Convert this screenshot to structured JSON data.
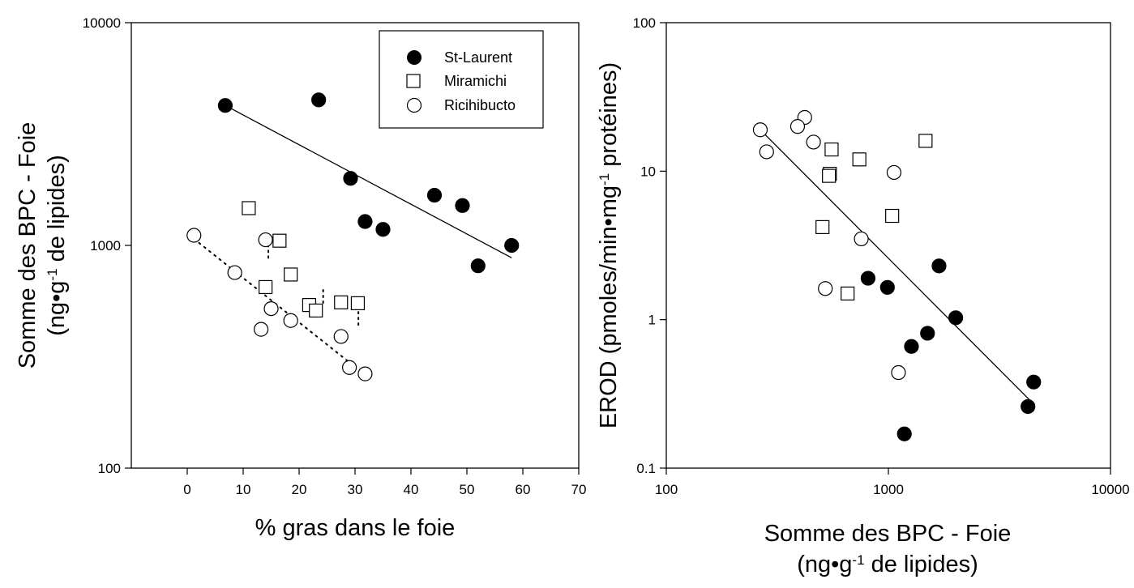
{
  "chart_data": [
    {
      "type": "scatter",
      "id": "left",
      "xlabel": "% gras dans le foie",
      "ylabel_line1": "Somme des BPC - Foie",
      "ylabel_line2": {
        "pre": "(ng•g",
        "sup": "-1",
        "post": " de lipides)"
      },
      "x_scale": "linear",
      "y_scale": "log",
      "xlim": [
        -10,
        70
      ],
      "ylim": [
        100,
        10000
      ],
      "x_ticks": [
        0,
        10,
        20,
        30,
        40,
        50,
        60,
        70
      ],
      "x_tick_labels": [
        "0",
        "10",
        "20",
        "30",
        "40",
        "50",
        "60",
        "70"
      ],
      "y_ticks": [
        100,
        1000,
        10000
      ],
      "y_tick_labels": [
        "100",
        "1000",
        "10000"
      ],
      "legend": {
        "placement": "top-right",
        "entries": [
          {
            "label": "St-Laurent",
            "marker": "filled-circle"
          },
          {
            "label": "Miramichi",
            "marker": "open-square"
          },
          {
            "label": "Ricihibucto",
            "marker": "open-circle"
          }
        ]
      },
      "series": [
        {
          "name": "St-Laurent",
          "marker": "filled-circle",
          "color": "#000000",
          "points": [
            [
              6.8,
              4250
            ],
            [
              23.5,
              4500
            ],
            [
              29.2,
              2000
            ],
            [
              31.8,
              1280
            ],
            [
              35,
              1180
            ],
            [
              44.2,
              1680
            ],
            [
              49.2,
              1510
            ],
            [
              52,
              810
            ],
            [
              58,
              1000
            ]
          ]
        },
        {
          "name": "Miramichi",
          "marker": "open-square",
          "color": "#000000",
          "points": [
            [
              11,
              1470
            ],
            [
              16.5,
              1050
            ],
            [
              18.5,
              740
            ],
            [
              14,
              650
            ],
            [
              21.8,
              540
            ],
            [
              23,
              510
            ],
            [
              27.5,
              555
            ],
            [
              30.5,
              550
            ]
          ]
        },
        {
          "name": "Ricihibucto",
          "marker": "open-circle",
          "color": "#000000",
          "points": [
            [
              1.2,
              1110
            ],
            [
              8.5,
              755
            ],
            [
              14,
              1060
            ],
            [
              15,
              520
            ],
            [
              13.2,
              420
            ],
            [
              18.5,
              460
            ],
            [
              27.5,
              390
            ],
            [
              29,
              283
            ],
            [
              31.8,
              265
            ]
          ]
        }
      ],
      "regression_lines": [
        {
          "series": "St-Laurent",
          "style": "solid",
          "from": [
            6.8,
            4250
          ],
          "to": [
            58,
            880
          ]
        },
        {
          "series": "Ricihibucto",
          "style": "dotted",
          "from": [
            1.2,
            1070
          ],
          "to": [
            30,
            285
          ]
        }
      ],
      "vertical_dot_marks": [
        [
          14.5,
          940
        ],
        [
          24.3,
          590
        ],
        [
          30.6,
          470
        ]
      ]
    },
    {
      "type": "scatter",
      "id": "right",
      "xlabel_line1": "Somme des BPC - Foie",
      "xlabel_line2": {
        "pre": "(ng•g",
        "sup": "-1",
        "post": " de lipides)"
      },
      "ylabel": {
        "pre": "EROD (pmoles/min•mg",
        "sup": "-1",
        "post": " protéines)"
      },
      "x_scale": "log",
      "y_scale": "log",
      "xlim": [
        100,
        10000
      ],
      "ylim": [
        0.1,
        100
      ],
      "x_ticks": [
        100,
        1000,
        10000
      ],
      "x_tick_labels": [
        "100",
        "1000",
        "10000"
      ],
      "y_ticks": [
        0.1,
        1,
        10,
        100
      ],
      "y_tick_labels": [
        "0.1",
        "1",
        "10",
        "100"
      ],
      "series": [
        {
          "name": "St-Laurent",
          "marker": "filled-circle",
          "color": "#000000",
          "points": [
            [
              810,
              1.9
            ],
            [
              990,
              1.65
            ],
            [
              1690,
              2.3
            ],
            [
              2010,
              1.03
            ],
            [
              1500,
              0.81
            ],
            [
              1270,
              0.66
            ],
            [
              4510,
              0.38
            ],
            [
              4250,
              0.26
            ],
            [
              1180,
              0.17
            ]
          ]
        },
        {
          "name": "Miramichi",
          "marker": "open-square",
          "color": "#000000",
          "points": [
            [
              1470,
              16
            ],
            [
              555,
              14
            ],
            [
              740,
              12
            ],
            [
              545,
              9.6
            ],
            [
              540,
              9.3
            ],
            [
              1040,
              5.0
            ],
            [
              505,
              4.2
            ],
            [
              655,
              1.5
            ]
          ]
        },
        {
          "name": "Ricihibucto",
          "marker": "open-circle",
          "color": "#000000",
          "points": [
            [
              420,
              23
            ],
            [
              390,
              20
            ],
            [
              265,
              19
            ],
            [
              283,
              13.5
            ],
            [
              460,
              15.7
            ],
            [
              1060,
              9.8
            ],
            [
              755,
              3.5
            ],
            [
              520,
              1.62
            ],
            [
              1110,
              0.44
            ]
          ]
        }
      ],
      "regression_lines": [
        {
          "series": "all",
          "style": "solid",
          "from": [
            265,
            19
          ],
          "to": [
            4300,
            0.29
          ]
        }
      ]
    }
  ]
}
